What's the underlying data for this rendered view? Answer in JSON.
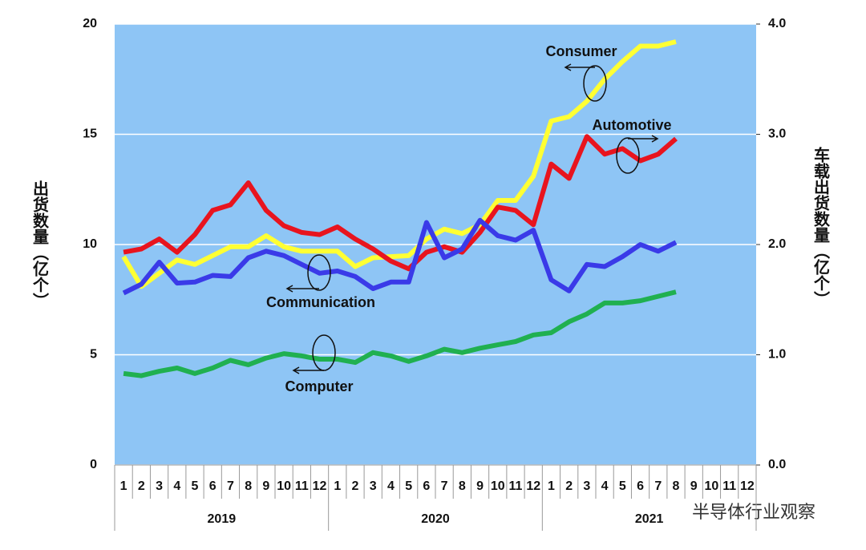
{
  "chart_data": {
    "type": "line",
    "y_label": "出货数量（亿个）",
    "y2_label": "车载出货数量（亿个）",
    "watermark": "半导体行业观察",
    "categories": [
      "1",
      "2",
      "3",
      "4",
      "5",
      "6",
      "7",
      "8",
      "9",
      "10",
      "11",
      "12",
      "1",
      "2",
      "3",
      "4",
      "5",
      "6",
      "7",
      "8",
      "9",
      "10",
      "11",
      "12",
      "1",
      "2",
      "3",
      "4",
      "5",
      "6",
      "7",
      "8",
      "9",
      "10",
      "11",
      "12"
    ],
    "year_labels": [
      "2019",
      "2020",
      "2021"
    ],
    "ylim": [
      0,
      20
    ],
    "yticks": [
      0,
      5,
      10,
      15,
      20
    ],
    "y2lim": [
      0,
      4
    ],
    "y2ticks": [
      {
        "value": 0,
        "label": "0.0"
      },
      {
        "value": 1,
        "label": "1.0"
      },
      {
        "value": 2,
        "label": "2.0"
      },
      {
        "value": 3,
        "label": "3.0"
      },
      {
        "value": 4,
        "label": "4.0"
      }
    ],
    "grid": true,
    "series": [
      {
        "name": "Consumer",
        "color": "#ffff33",
        "values": [
          9.45,
          8.1,
          8.7,
          9.3,
          9.1,
          9.5,
          9.9,
          9.9,
          10.4,
          9.9,
          9.7,
          9.7,
          9.7,
          9.0,
          9.4,
          9.45,
          9.5,
          10.25,
          10.7,
          10.5,
          10.9,
          12.0,
          12.0,
          13.1,
          15.6,
          15.8,
          16.5,
          17.5,
          18.3,
          19.0,
          19.0,
          19.2,
          null,
          null,
          null,
          null
        ]
      },
      {
        "name": "Automotive",
        "color": "#e8141e",
        "axis": "y2",
        "values": [
          1.93,
          1.96,
          2.05,
          1.93,
          2.09,
          2.31,
          2.36,
          2.56,
          2.31,
          2.17,
          2.11,
          2.09,
          2.16,
          2.05,
          1.96,
          1.85,
          1.78,
          1.93,
          1.98,
          1.93,
          2.11,
          2.34,
          2.31,
          2.18,
          2.73,
          2.6,
          2.98,
          2.82,
          2.87,
          2.76,
          2.82,
          2.96,
          null,
          null,
          null,
          null
        ]
      },
      {
        "name": "Communication",
        "color": "#3a3ae8",
        "values": [
          7.8,
          8.2,
          9.2,
          8.25,
          8.3,
          8.6,
          8.55,
          9.4,
          9.7,
          9.5,
          9.1,
          8.7,
          8.8,
          8.55,
          8.0,
          8.3,
          8.3,
          11.0,
          9.4,
          9.8,
          11.1,
          10.4,
          10.2,
          10.65,
          8.4,
          7.9,
          9.1,
          9.0,
          9.45,
          10.0,
          9.7,
          10.1,
          null,
          null,
          null,
          null
        ]
      },
      {
        "name": "Computer",
        "color": "#20b050",
        "values": [
          4.15,
          4.05,
          4.25,
          4.4,
          4.15,
          4.4,
          4.75,
          4.55,
          4.85,
          5.05,
          4.95,
          4.8,
          4.8,
          4.65,
          5.1,
          4.95,
          4.7,
          4.95,
          5.25,
          5.1,
          5.3,
          5.45,
          5.6,
          5.9,
          6.0,
          6.5,
          6.85,
          7.35,
          7.35,
          7.45,
          7.65,
          7.85,
          null,
          null,
          null,
          null
        ]
      }
    ]
  }
}
